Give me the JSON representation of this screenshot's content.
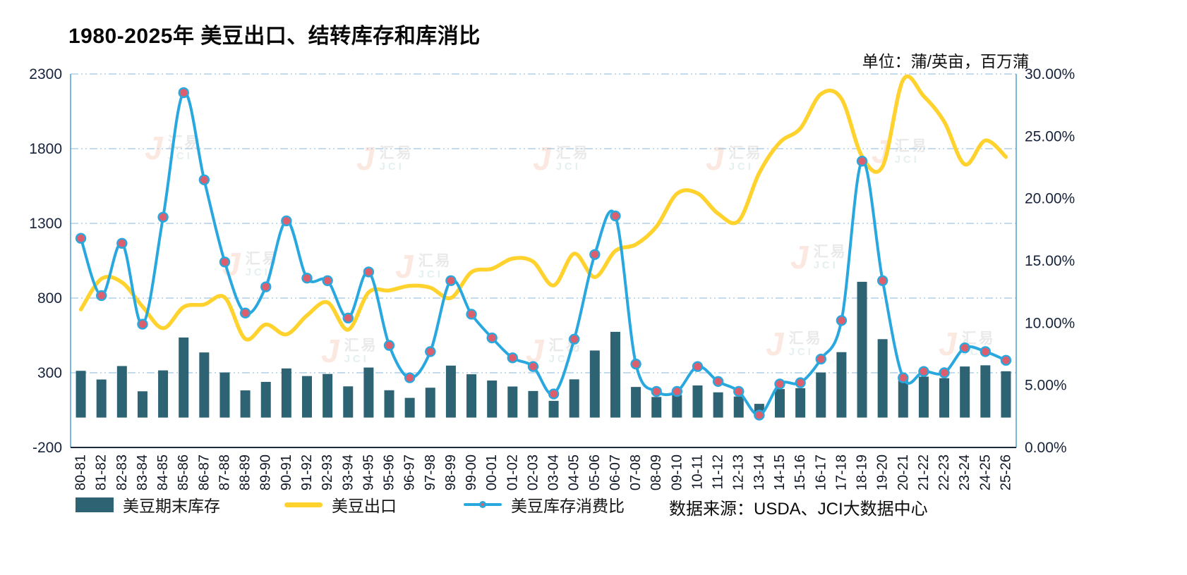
{
  "title": "1980-2025年 美豆出口、结转库存和库消比",
  "unit_label": "单位：蒲/英亩，百万蒲",
  "source_label": "数据来源：USDA、JCI大数据中心",
  "watermark": {
    "glyph": "J",
    "line1": "汇易",
    "line2": "JCI"
  },
  "legend": {
    "items": [
      {
        "label": "美豆期末库存"
      },
      {
        "label": "美豆出口"
      },
      {
        "label": "美豆库存消费比"
      }
    ]
  },
  "chart_data": {
    "type": "combo",
    "title": "1980-2025年 美豆出口、结转库存和库消比",
    "categories": [
      "80-81",
      "81-82",
      "82-83",
      "83-84",
      "84-85",
      "85-86",
      "86-87",
      "87-88",
      "88-89",
      "89-90",
      "90-91",
      "91-92",
      "92-93",
      "93-94",
      "94-95",
      "95-96",
      "96-97",
      "97-98",
      "98-99",
      "99-00",
      "00-01",
      "01-02",
      "02-03",
      "03-04",
      "04-05",
      "05-06",
      "06-07",
      "07-08",
      "08-09",
      "09-10",
      "10-11",
      "11-12",
      "12-13",
      "13-14",
      "14-15",
      "15-16",
      "16-17",
      "17-18",
      "18-19",
      "19-20",
      "20-21",
      "21-22",
      "22-23",
      "23-24",
      "24-25",
      "25-26"
    ],
    "series": [
      {
        "name": "美豆期末库存",
        "type": "bar",
        "axis": "left",
        "color": "#2E6374",
        "values": [
          313,
          255,
          345,
          176,
          316,
          536,
          436,
          302,
          182,
          239,
          329,
          278,
          292,
          209,
          335,
          183,
          132,
          200,
          348,
          290,
          248,
          208,
          178,
          112,
          256,
          449,
          574,
          205,
          138,
          151,
          215,
          169,
          141,
          92,
          191,
          197,
          302,
          438,
          909,
          525,
          257,
          274,
          264,
          342,
          350,
          310
        ]
      },
      {
        "name": "美豆出口",
        "type": "line",
        "axis": "left",
        "color": "#FFD22E",
        "values": [
          724,
          929,
          905,
          743,
          598,
          740,
          757,
          804,
          527,
          623,
          557,
          684,
          771,
          588,
          838,
          851,
          882,
          870,
          801,
          973,
          996,
          1064,
          1044,
          885,
          1097,
          940,
          1116,
          1159,
          1279,
          1499,
          1501,
          1365,
          1317,
          1638,
          1842,
          1936,
          2166,
          2134,
          1748,
          1682,
          2261,
          2152,
          1980,
          1695,
          1855,
          1745
        ]
      },
      {
        "name": "美豆库存消费比",
        "type": "line",
        "axis": "right",
        "color": "#29A8DF",
        "marker_color": "#DC5F6E",
        "values": [
          16.8,
          12.2,
          16.4,
          9.9,
          18.5,
          28.5,
          21.5,
          14.9,
          10.8,
          12.9,
          18.2,
          13.6,
          13.4,
          10.4,
          14.1,
          8.2,
          5.6,
          7.7,
          13.4,
          10.7,
          8.8,
          7.2,
          6.5,
          4.3,
          8.7,
          15.5,
          18.6,
          6.7,
          4.5,
          4.5,
          6.5,
          5.3,
          4.5,
          2.6,
          5.1,
          5.2,
          7.1,
          10.2,
          23.0,
          13.4,
          5.6,
          6.1,
          6.0,
          8.0,
          7.7,
          7.0
        ]
      }
    ],
    "left_axis": {
      "min": -200,
      "max": 2300,
      "ticks": [
        -200,
        300,
        800,
        1300,
        1800,
        2300
      ],
      "tick_labels": [
        "-200",
        "300",
        "800",
        "1300",
        "1800",
        "2300"
      ]
    },
    "right_axis": {
      "min": 0,
      "max": 30,
      "ticks": [
        0,
        5,
        10,
        15,
        20,
        25,
        30
      ],
      "tick_labels": [
        "0.00%",
        "5.00%",
        "10.00%",
        "15.00%",
        "20.00%",
        "25.00%",
        "30.00%"
      ]
    },
    "style": {
      "grid_color": "#9FC5DE",
      "axis_color": "#58A6D4",
      "x_axis_color": "#1B2A3A",
      "text_color": "#16233A"
    },
    "grid": "horizontal-dash-dot",
    "legend_position": "bottom"
  }
}
